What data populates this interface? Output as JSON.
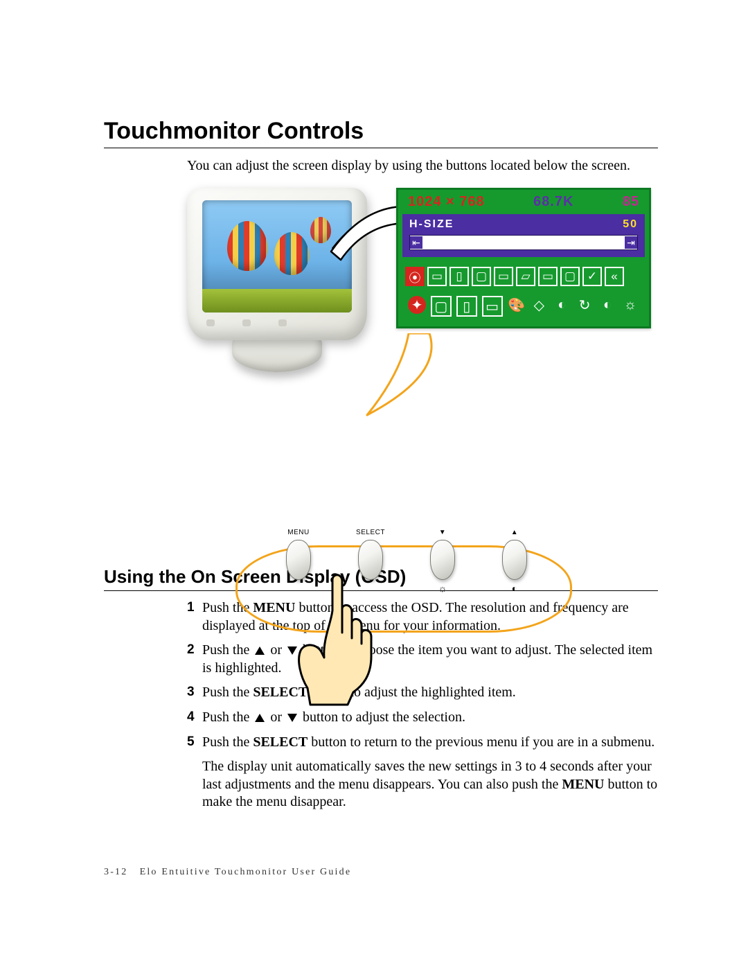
{
  "title": "Touchmonitor Controls",
  "intro": "You can adjust the screen display by using the buttons located below the screen.",
  "osd": {
    "resolution": "1024 × 768",
    "freq": "68.7K",
    "hz": "85",
    "param": "H-SIZE",
    "value": "50",
    "colors": {
      "panel": "#169a2e",
      "purple": "#4b2ea2",
      "red": "#d5261e",
      "yellow": "#ffe02a"
    },
    "row1": [
      {
        "g": "⦿",
        "sel": true
      },
      {
        "g": "▭"
      },
      {
        "g": "▯"
      },
      {
        "g": "▢"
      },
      {
        "g": "▭"
      },
      {
        "g": "▱"
      },
      {
        "g": "▭"
      },
      {
        "g": "▢"
      },
      {
        "g": "✓"
      },
      {
        "g": "«"
      }
    ],
    "row2": [
      {
        "g": "✦",
        "cls": "globe"
      },
      {
        "g": "▢",
        "cls": "outline"
      },
      {
        "g": "▯",
        "cls": "outline"
      },
      {
        "g": "▭",
        "cls": "outline"
      },
      {
        "g": "🎨",
        "cls": "yel"
      },
      {
        "g": "◇"
      },
      {
        "g": "◐",
        "cls": "red"
      },
      {
        "g": "↻"
      },
      {
        "g": "◐"
      },
      {
        "g": "☼"
      }
    ]
  },
  "buttons": [
    {
      "label": "MENU",
      "sub": ""
    },
    {
      "label": "SELECT",
      "sub": ""
    },
    {
      "label": "▼",
      "sub": "☼"
    },
    {
      "label": "▲",
      "sub": "◐"
    }
  ],
  "h2": "Using the On Screen Display (OSD)",
  "steps": [
    {
      "n": "1",
      "html": "Push the <b>MENU</b> button to access the OSD. The resolution and frequency are displayed at the top of the menu for your information."
    },
    {
      "n": "2",
      "html": "Push the ▲ or ▼ button to choose the item you want to adjust. The selected item is highlighted."
    },
    {
      "n": "3",
      "html": "Push the <b>SELECT</b> button to adjust the highlighted item."
    },
    {
      "n": "4",
      "html": "Push the ▲ or ▼ button to adjust the selection."
    },
    {
      "n": "5",
      "html": "Push the <b>SELECT</b> button to return to the previous menu if you are in a submenu."
    }
  ],
  "tail_para": "The display unit automatically saves the new settings in 3 to 4 seconds after your last adjustments and the menu disappears. You can also push the <b>MENU</b> button to make the menu disappear.",
  "footer_page": "3-12",
  "footer_text": "Elo Entuitive Touchmonitor User Guide"
}
